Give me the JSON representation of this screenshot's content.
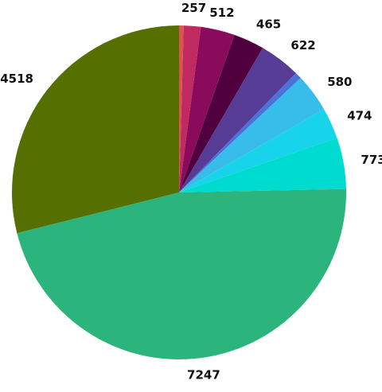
{
  "chart_data": {
    "type": "pie",
    "title": "",
    "legend": "none",
    "slices": [
      {
        "value": 70,
        "label": "",
        "color": "#e05252"
      },
      {
        "value": 257,
        "label": "257",
        "color": "#c02a60"
      },
      {
        "value": 512,
        "label": "512",
        "color": "#8a0a5c"
      },
      {
        "value": 465,
        "label": "465",
        "color": "#50003f"
      },
      {
        "value": 622,
        "label": "622",
        "color": "#563c94"
      },
      {
        "value": 100,
        "label": "",
        "color": "#4a72d8"
      },
      {
        "value": 580,
        "label": "580",
        "color": "#38bcea"
      },
      {
        "value": 474,
        "label": "474",
        "color": "#18d4ea"
      },
      {
        "value": 773,
        "label": "773",
        "color": "#00dbcf"
      },
      {
        "value": 7247,
        "label": "7247",
        "color": "#2bb57c"
      },
      {
        "value": 4518,
        "label": "4518",
        "color": "#557000"
      }
    ]
  }
}
